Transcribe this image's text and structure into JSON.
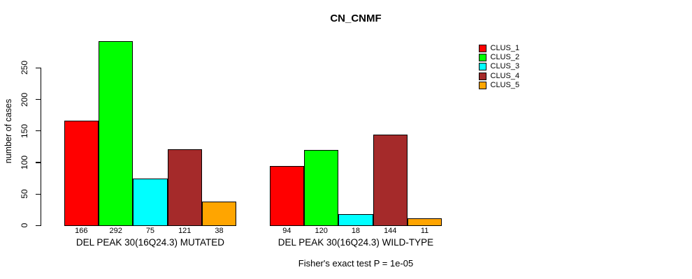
{
  "chart_data": {
    "type": "bar",
    "title": "CN_CNMF",
    "ylabel": "number of cases",
    "xlabel": "",
    "ylim": [
      0,
      292
    ],
    "yticks": [
      0,
      50,
      100,
      150,
      200,
      250
    ],
    "grid": false,
    "legend_position": "right",
    "series_colors": [
      "#FF0000",
      "#00FF00",
      "#00FFFF",
      "#A52A2A",
      "#FFA500"
    ],
    "groups": [
      {
        "label": "DEL PEAK 30(16Q24.3) MUTATED",
        "values": [
          166,
          292,
          75,
          121,
          38
        ]
      },
      {
        "label": "DEL PEAK 30(16Q24.3) WILD-TYPE",
        "values": [
          94,
          120,
          18,
          144,
          11
        ]
      }
    ],
    "legend": [
      {
        "label": "CLUS_1",
        "color": "#FF0000"
      },
      {
        "label": "CLUS_2",
        "color": "#00FF00"
      },
      {
        "label": "CLUS_3",
        "color": "#00FFFF"
      },
      {
        "label": "CLUS_4",
        "color": "#A52A2A"
      },
      {
        "label": "CLUS_5",
        "color": "#FFA500"
      }
    ],
    "footnote": "Fisher's exact test P = 1e-05"
  }
}
